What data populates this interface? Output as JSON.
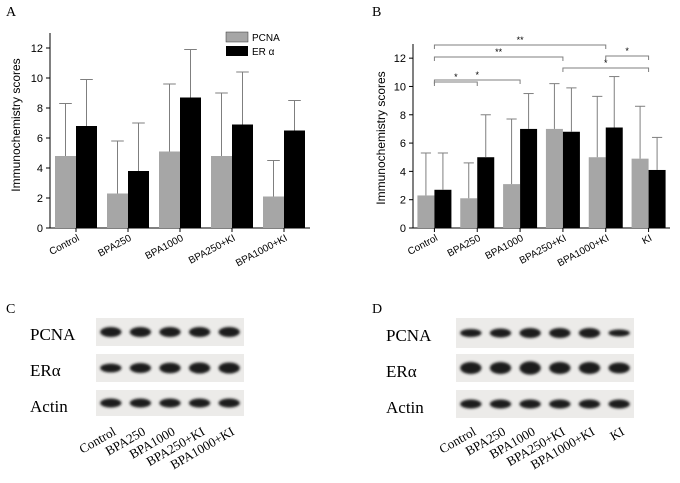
{
  "chart_data": [
    {
      "type": "bar",
      "panel": "A",
      "categories": [
        "Control",
        "BPA250",
        "BPA1000",
        "BPA250+KI",
        "BPA1000+KI"
      ],
      "ylabel": "Immunochemistry scores",
      "ylim": [
        0,
        13
      ],
      "yticks": [
        0,
        2,
        4,
        6,
        8,
        10,
        12
      ],
      "legend": "top-right",
      "series": [
        {
          "name": "PCNA",
          "color": "#a6a6a6",
          "values": [
            4.8,
            2.3,
            5.1,
            4.8,
            2.1
          ],
          "errors": [
            3.5,
            3.5,
            4.5,
            4.2,
            2.4
          ]
        },
        {
          "name": "ER α",
          "color": "#000000",
          "values": [
            6.8,
            3.8,
            8.7,
            6.9,
            6.5
          ],
          "errors": [
            3.1,
            3.2,
            3.2,
            3.5,
            2.0
          ]
        }
      ]
    },
    {
      "type": "bar",
      "panel": "B",
      "categories": [
        "Control",
        "BPA250",
        "BPA1000",
        "BPA250+KI",
        "BPA1000+KI",
        "KI"
      ],
      "ylabel": "Immunochemistry scores",
      "ylim": [
        0,
        13
      ],
      "yticks": [
        0,
        2,
        4,
        6,
        8,
        10,
        12
      ],
      "series": [
        {
          "name": "PCNA",
          "color": "#a6a6a6",
          "values": [
            2.3,
            2.1,
            3.1,
            7.0,
            5.0,
            4.9
          ],
          "errors": [
            3.0,
            2.5,
            4.6,
            3.2,
            4.3,
            3.7
          ]
        },
        {
          "name": "ER α",
          "color": "#000000",
          "values": [
            2.7,
            5.0,
            7.0,
            6.8,
            7.1,
            4.1
          ],
          "errors": [
            2.6,
            3.0,
            2.5,
            3.1,
            3.6,
            2.3
          ]
        }
      ],
      "significance": [
        {
          "from": 0,
          "to": 4,
          "label": "**"
        },
        {
          "from": 4,
          "to": 5,
          "label": "*"
        },
        {
          "from": 0,
          "to": 3,
          "label": "**"
        },
        {
          "from": 3,
          "to": 5,
          "label": "*"
        },
        {
          "from": 0,
          "to": 2,
          "label": "*"
        },
        {
          "from": 0,
          "to": 1,
          "label": "*"
        }
      ]
    }
  ],
  "panels": {
    "a": "A",
    "b": "B",
    "c": "C",
    "d": "D"
  },
  "blots": {
    "c": {
      "rows": [
        "PCNA",
        "ERα",
        "Actin"
      ],
      "lanes": [
        "Control",
        "BPA250",
        "BPA1000",
        "BPA250+KI",
        "BPA1000+KI"
      ]
    },
    "d": {
      "rows": [
        "PCNA",
        "ERα",
        "Actin"
      ],
      "lanes": [
        "Control",
        "BPA250",
        "BPA1000",
        "BPA250+KI",
        "BPA1000+KI",
        "KI"
      ]
    }
  }
}
